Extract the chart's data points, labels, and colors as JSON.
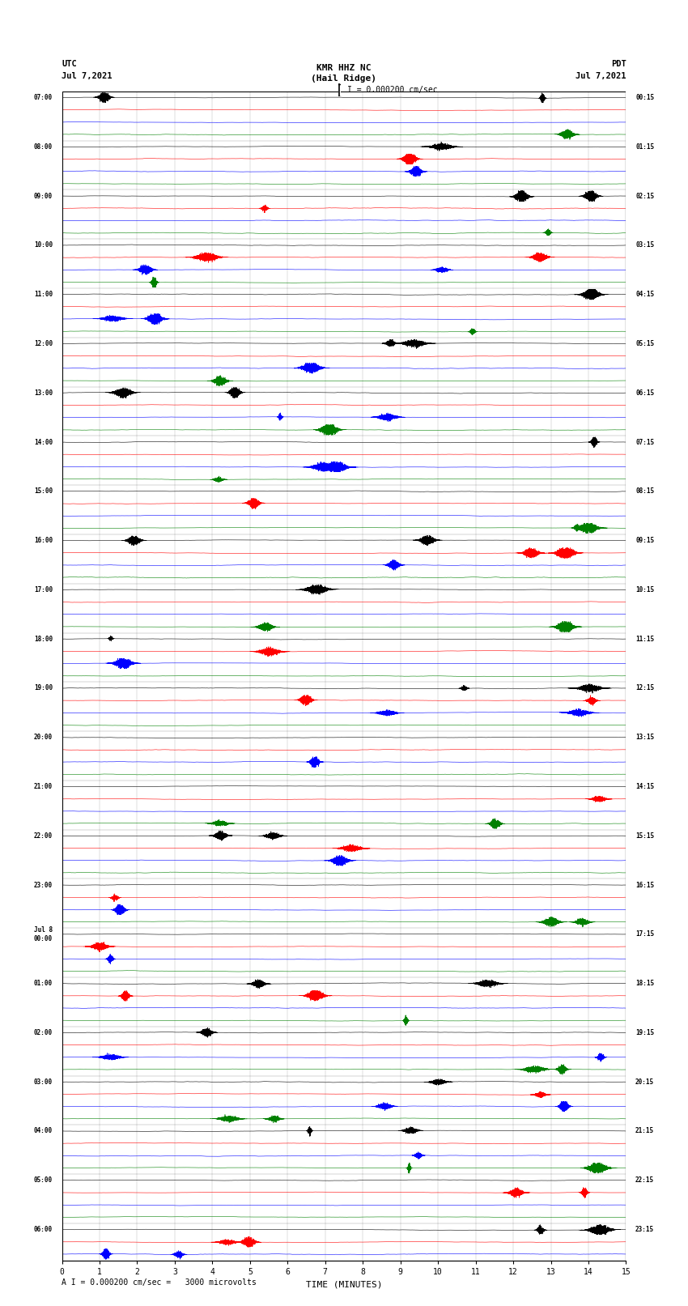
{
  "title_line1": "KMR HHZ NC",
  "title_line2": "(Hail Ridge)",
  "scale_label": "I = 0.000200 cm/sec",
  "utc_label": "UTC",
  "pdt_label": "PDT",
  "date_left": "Jul 7,2021",
  "date_right": "Jul 7,2021",
  "xlabel": "TIME (MINUTES)",
  "footer": "A I = 0.000200 cm/sec =   3000 microvolts",
  "colors": [
    "black",
    "red",
    "blue",
    "green"
  ],
  "trace_scale": 0.3,
  "noise_base": 0.04,
  "num_minutes": 15,
  "sample_rate": 50,
  "background_color": "white",
  "fig_width": 8.5,
  "fig_height": 16.13,
  "left_time_labels": [
    "07:00",
    "",
    "",
    "",
    "08:00",
    "",
    "",
    "",
    "09:00",
    "",
    "",
    "",
    "10:00",
    "",
    "",
    "",
    "11:00",
    "",
    "",
    "",
    "12:00",
    "",
    "",
    "",
    "13:00",
    "",
    "",
    "",
    "14:00",
    "",
    "",
    "",
    "15:00",
    "",
    "",
    "",
    "16:00",
    "",
    "",
    "",
    "17:00",
    "",
    "",
    "",
    "18:00",
    "",
    "",
    "",
    "19:00",
    "",
    "",
    "",
    "20:00",
    "",
    "",
    "",
    "21:00",
    "",
    "",
    "",
    "22:00",
    "",
    "",
    "",
    "23:00",
    "",
    "",
    "",
    "Jul 8\n00:00",
    "",
    "",
    "",
    "01:00",
    "",
    "",
    "",
    "02:00",
    "",
    "",
    "",
    "03:00",
    "",
    "",
    "",
    "04:00",
    "",
    "",
    "",
    "05:00",
    "",
    "",
    "",
    "06:00",
    "",
    ""
  ],
  "right_time_labels": [
    "00:15",
    "",
    "",
    "",
    "01:15",
    "",
    "",
    "",
    "02:15",
    "",
    "",
    "",
    "03:15",
    "",
    "",
    "",
    "04:15",
    "",
    "",
    "",
    "05:15",
    "",
    "",
    "",
    "06:15",
    "",
    "",
    "",
    "07:15",
    "",
    "",
    "",
    "08:15",
    "",
    "",
    "",
    "09:15",
    "",
    "",
    "",
    "10:15",
    "",
    "",
    "",
    "11:15",
    "",
    "",
    "",
    "12:15",
    "",
    "",
    "",
    "13:15",
    "",
    "",
    "",
    "14:15",
    "",
    "",
    "",
    "15:15",
    "",
    "",
    "",
    "16:15",
    "",
    "",
    "",
    "17:15",
    "",
    "",
    "",
    "18:15",
    "",
    "",
    "",
    "19:15",
    "",
    "",
    "",
    "20:15",
    "",
    "",
    "",
    "21:15",
    "",
    "",
    "",
    "22:15",
    "",
    "",
    "",
    "23:15",
    "",
    ""
  ]
}
